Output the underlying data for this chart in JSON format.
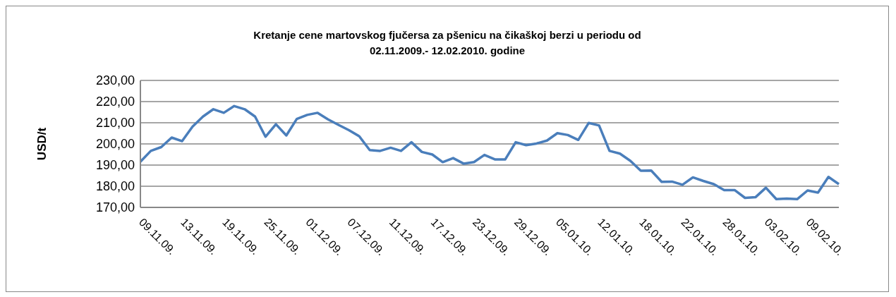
{
  "chart_data": {
    "type": "line",
    "title": "Kretanje cene martovskog fjučersa za pšenicu na čikaškoj berzi u periodu od 02.11.2009.- 12.02.2010. godine",
    "ylabel": "USD/t",
    "categories": [
      "09.11.09.",
      null,
      null,
      null,
      "13.11.09.",
      null,
      null,
      null,
      "19.11.09.",
      null,
      null,
      null,
      "25.11.09.",
      null,
      null,
      null,
      "01.12.09.",
      null,
      null,
      null,
      "07.12.09.",
      null,
      null,
      null,
      "11.12.09.",
      null,
      null,
      null,
      "17.12.09.",
      null,
      null,
      null,
      "23.12.09.",
      null,
      null,
      null,
      "29.12.09.",
      null,
      null,
      null,
      "05.01.10.",
      null,
      null,
      null,
      "12.01.10.",
      null,
      null,
      null,
      "18.01.10.",
      null,
      null,
      null,
      "22.01.10.",
      null,
      null,
      null,
      "28.01.10.",
      null,
      null,
      null,
      "03.02.10.",
      null,
      null,
      null,
      "09.02.10.",
      null,
      null,
      null
    ],
    "series": [
      {
        "color": "#4a7ebb",
        "values": [
          191.6,
          196.7,
          198.5,
          203.0,
          201.3,
          208.2,
          212.9,
          216.4,
          214.7,
          217.9,
          216.4,
          212.9,
          203.4,
          209.3,
          204.0,
          211.8,
          213.7,
          214.7,
          211.6,
          209.0,
          206.5,
          203.6,
          197.1,
          196.7,
          198.2,
          196.7,
          200.8,
          196.2,
          195.0,
          191.4,
          193.3,
          190.7,
          191.4,
          194.8,
          192.7,
          192.7,
          200.8,
          199.4,
          200.2,
          201.6,
          205.1,
          204.2,
          201.9,
          209.9,
          208.7,
          196.7,
          195.4,
          192.0,
          187.3,
          187.4,
          182.1,
          182.2,
          180.7,
          184.2,
          182.5,
          181.0,
          178.2,
          178.2,
          174.5,
          174.8,
          179.3,
          173.9,
          174.2,
          173.9,
          178.0,
          177.0,
          184.4,
          181.0
        ]
      }
    ],
    "ylim": [
      170,
      230
    ],
    "yticks": [
      {
        "value": 170,
        "label": "170,00"
      },
      {
        "value": 180,
        "label": "180,00"
      },
      {
        "value": 190,
        "label": "190,00"
      },
      {
        "value": 200,
        "label": "200,00"
      },
      {
        "value": 210,
        "label": "210,00"
      },
      {
        "value": 220,
        "label": "220,00"
      },
      {
        "value": 230,
        "label": "230,00"
      }
    ],
    "grid": "y",
    "marker": "none",
    "line_style": "solid",
    "legend": false
  }
}
